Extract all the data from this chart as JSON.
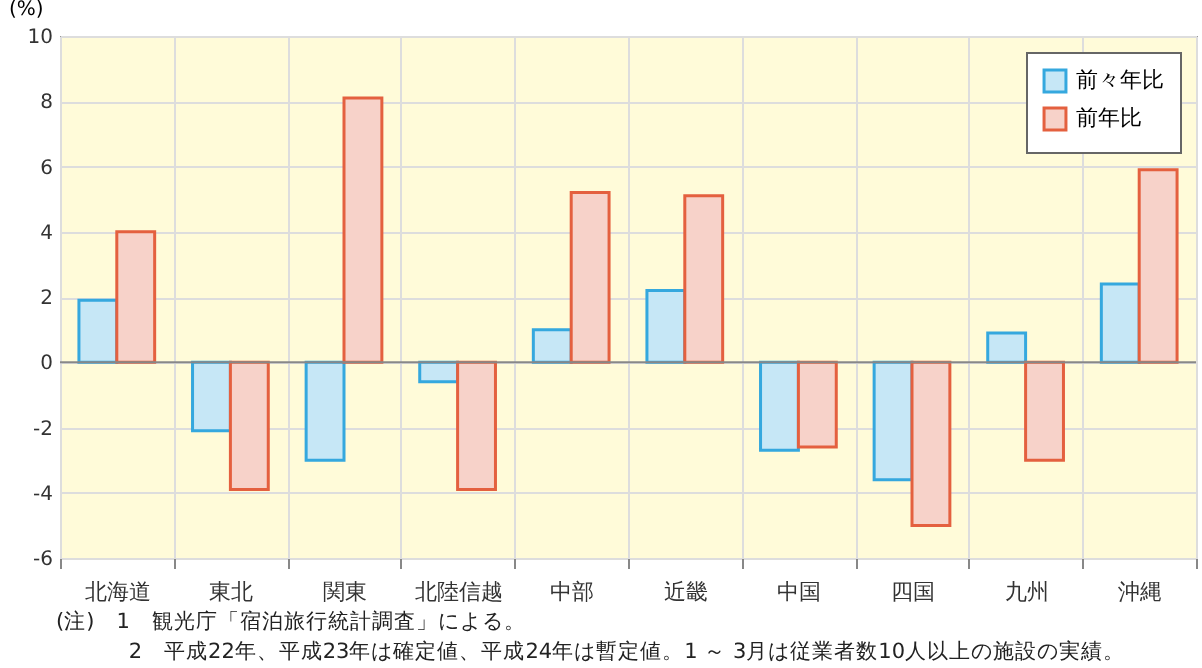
{
  "chart_data": {
    "type": "bar",
    "ylabel": "(%)",
    "categories": [
      "北海道",
      "東北",
      "関東",
      "北陸信越",
      "中部",
      "近畿",
      "中国",
      "四国",
      "九州",
      "沖縄"
    ],
    "series": [
      {
        "name": "前々年比",
        "color": "#35a8de",
        "values": [
          1.9,
          -2.1,
          -3.0,
          -0.6,
          1.0,
          2.2,
          -2.7,
          -3.6,
          0.9,
          2.4
        ]
      },
      {
        "name": "前年比",
        "color": "#e4603f",
        "values": [
          4.0,
          -3.9,
          8.1,
          -3.9,
          5.2,
          5.1,
          -2.6,
          -5.0,
          -3.0,
          5.9
        ]
      }
    ],
    "ylim": [
      -6,
      10
    ],
    "yticks": [
      -6,
      -4,
      -2,
      0,
      2,
      4,
      6,
      8,
      10
    ],
    "grid": true,
    "legend": "top right",
    "annotations": [
      "(注)　1　観光庁「宿泊旅行統計調査」による。",
      "　　　 2　平成22年、平成23年は確定値、平成24年は暫定値。1 ～ 3月は従業者数10人以上の施設の実績。"
    ]
  }
}
